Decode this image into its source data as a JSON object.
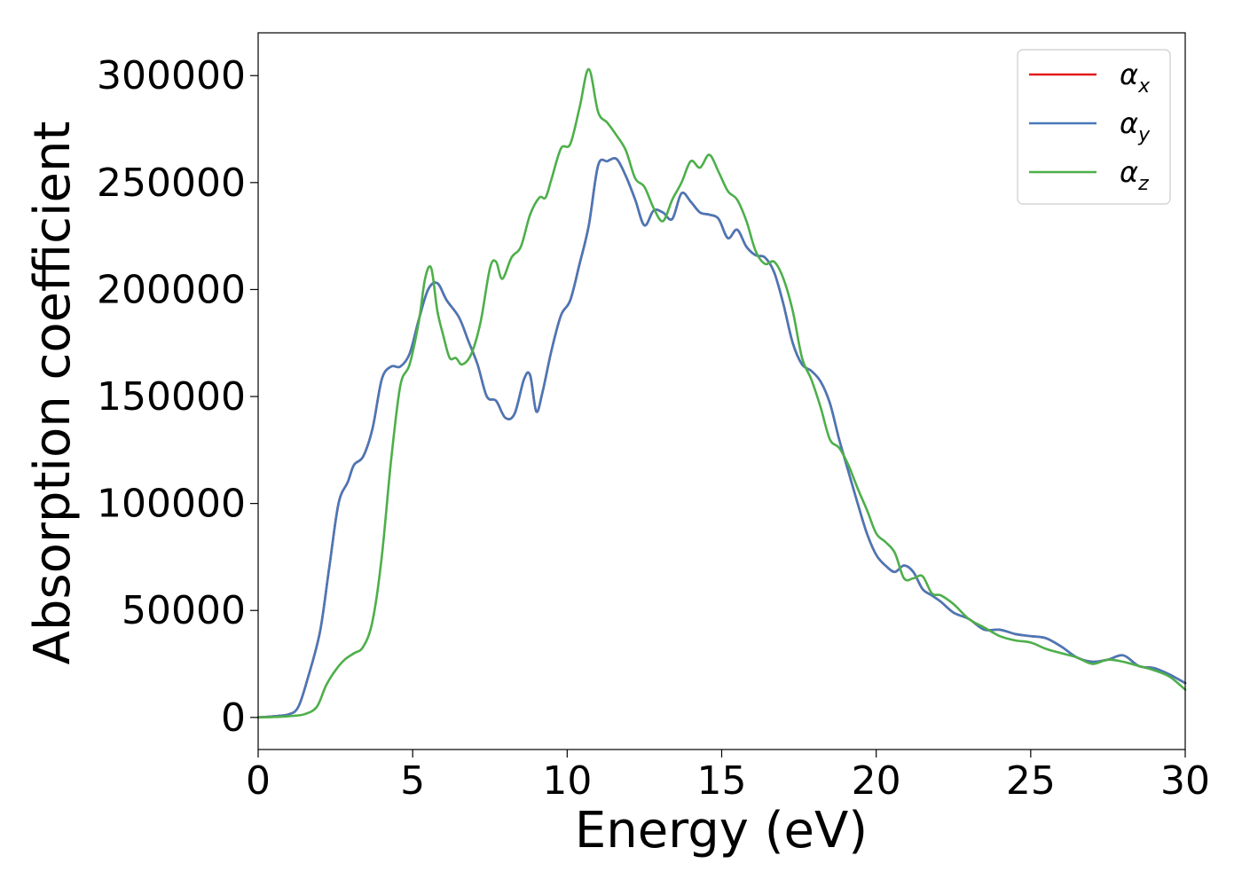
{
  "chart_data": {
    "type": "line",
    "title": "",
    "xlabel": "Energy (eV)",
    "ylabel": "Absorption coefficient",
    "xlim": [
      0,
      30
    ],
    "ylim": [
      -15000,
      320000
    ],
    "xticks": [
      0,
      5,
      10,
      15,
      20,
      25,
      30
    ],
    "yticks": [
      0,
      50000,
      100000,
      150000,
      200000,
      250000,
      300000
    ],
    "xtick_labels": [
      "0",
      "5",
      "10",
      "15",
      "20",
      "25",
      "30"
    ],
    "ytick_labels": [
      "0",
      "50000",
      "100000",
      "150000",
      "200000",
      "250000",
      "300000"
    ],
    "grid": false,
    "legend_position": "top-right",
    "series": [
      {
        "name": "α_x",
        "label_main": "α",
        "label_sub": "x",
        "color": "#e41a1c",
        "x": [
          0,
          0.5,
          1,
          1.3,
          1.6,
          2,
          2.3,
          2.6,
          2.9,
          3.1,
          3.4,
          3.7,
          4,
          4.3,
          4.6,
          4.9,
          5.2,
          5.5,
          5.8,
          6.1,
          6.5,
          6.8,
          7.1,
          7.4,
          7.7,
          8,
          8.3,
          8.6,
          8.8,
          9,
          9.2,
          9.5,
          9.8,
          10.1,
          10.4,
          10.7,
          11,
          11.3,
          11.6,
          11.9,
          12.2,
          12.5,
          12.8,
          13.1,
          13.4,
          13.7,
          14,
          14.3,
          14.6,
          14.9,
          15.2,
          15.5,
          15.8,
          16.1,
          16.4,
          16.7,
          17,
          17.3,
          17.6,
          17.9,
          18.2,
          18.5,
          18.8,
          19.1,
          19.4,
          19.7,
          20,
          20.3,
          20.6,
          20.9,
          21.2,
          21.5,
          21.8,
          22.1,
          22.5,
          23,
          23.5,
          24,
          24.5,
          25,
          25.5,
          26,
          26.5,
          27,
          27.5,
          28,
          28.5,
          29,
          29.5,
          30
        ],
        "y": [
          0,
          500,
          1500,
          5000,
          18000,
          40000,
          70000,
          100000,
          110000,
          118000,
          122000,
          135000,
          158000,
          164000,
          164000,
          170000,
          186000,
          200000,
          203000,
          195000,
          187000,
          176000,
          165000,
          150000,
          148000,
          140000,
          142000,
          158000,
          160000,
          143000,
          152000,
          172000,
          188000,
          195000,
          212000,
          230000,
          258000,
          260000,
          261000,
          253000,
          242000,
          230000,
          237000,
          236000,
          233000,
          245000,
          241000,
          236000,
          235000,
          233000,
          224000,
          228000,
          220000,
          216000,
          215000,
          208000,
          193000,
          175000,
          165000,
          162000,
          157000,
          147000,
          130000,
          115000,
          100000,
          86000,
          76000,
          71000,
          68000,
          71000,
          68000,
          60000,
          57000,
          54000,
          49000,
          46000,
          41000,
          41000,
          39000,
          38000,
          37000,
          33000,
          28000,
          26000,
          27000,
          29000,
          24000,
          23000,
          20000,
          16000
        ]
      },
      {
        "name": "α_y",
        "label_main": "α",
        "label_sub": "y",
        "color": "#4878b8",
        "x": [
          0,
          0.5,
          1,
          1.3,
          1.6,
          2,
          2.3,
          2.6,
          2.9,
          3.1,
          3.4,
          3.7,
          4,
          4.3,
          4.6,
          4.9,
          5.2,
          5.5,
          5.8,
          6.1,
          6.5,
          6.8,
          7.1,
          7.4,
          7.7,
          8,
          8.3,
          8.6,
          8.8,
          9,
          9.2,
          9.5,
          9.8,
          10.1,
          10.4,
          10.7,
          11,
          11.3,
          11.6,
          11.9,
          12.2,
          12.5,
          12.8,
          13.1,
          13.4,
          13.7,
          14,
          14.3,
          14.6,
          14.9,
          15.2,
          15.5,
          15.8,
          16.1,
          16.4,
          16.7,
          17,
          17.3,
          17.6,
          17.9,
          18.2,
          18.5,
          18.8,
          19.1,
          19.4,
          19.7,
          20,
          20.3,
          20.6,
          20.9,
          21.2,
          21.5,
          21.8,
          22.1,
          22.5,
          23,
          23.5,
          24,
          24.5,
          25,
          25.5,
          26,
          26.5,
          27,
          27.5,
          28,
          28.5,
          29,
          29.5,
          30
        ],
        "y": [
          0,
          500,
          1500,
          5000,
          18000,
          40000,
          70000,
          100000,
          110000,
          118000,
          122000,
          135000,
          158000,
          164000,
          164000,
          170000,
          186000,
          200000,
          203000,
          195000,
          187000,
          176000,
          165000,
          150000,
          148000,
          140000,
          142000,
          158000,
          160000,
          143000,
          152000,
          172000,
          188000,
          195000,
          212000,
          230000,
          258000,
          260000,
          261000,
          253000,
          242000,
          230000,
          237000,
          236000,
          233000,
          245000,
          241000,
          236000,
          235000,
          233000,
          224000,
          228000,
          220000,
          216000,
          215000,
          208000,
          193000,
          175000,
          165000,
          162000,
          157000,
          147000,
          130000,
          115000,
          100000,
          86000,
          76000,
          71000,
          68000,
          71000,
          68000,
          60000,
          57000,
          54000,
          49000,
          46000,
          41000,
          41000,
          39000,
          38000,
          37000,
          33000,
          28000,
          26000,
          27000,
          29000,
          24000,
          23000,
          20000,
          16000
        ]
      },
      {
        "name": "α_z",
        "label_main": "α",
        "label_sub": "z",
        "color": "#4daf4a",
        "x": [
          0,
          0.5,
          1,
          1.5,
          1.9,
          2.2,
          2.5,
          2.8,
          3.1,
          3.4,
          3.7,
          4,
          4.3,
          4.6,
          4.9,
          5.2,
          5.4,
          5.6,
          5.8,
          6,
          6.2,
          6.4,
          6.6,
          6.9,
          7.2,
          7.5,
          7.7,
          7.9,
          8.2,
          8.5,
          8.8,
          9.1,
          9.3,
          9.5,
          9.8,
          10.1,
          10.4,
          10.7,
          11,
          11.3,
          11.6,
          11.9,
          12.2,
          12.5,
          12.8,
          13.1,
          13.4,
          13.7,
          14,
          14.3,
          14.6,
          14.9,
          15.2,
          15.5,
          15.8,
          16.1,
          16.4,
          16.7,
          17,
          17.3,
          17.6,
          17.9,
          18.2,
          18.5,
          18.8,
          19.1,
          19.4,
          19.7,
          20,
          20.3,
          20.6,
          20.9,
          21.2,
          21.5,
          21.8,
          22.1,
          22.5,
          23,
          23.5,
          24,
          24.5,
          25,
          25.5,
          26,
          26.5,
          27,
          27.5,
          28,
          28.5,
          29,
          29.5,
          30
        ],
        "y": [
          0,
          200,
          600,
          1500,
          5000,
          15000,
          22000,
          27000,
          30000,
          33000,
          45000,
          75000,
          120000,
          155000,
          165000,
          185000,
          205000,
          210000,
          190000,
          178000,
          168000,
          168000,
          165000,
          170000,
          185000,
          210000,
          213000,
          205000,
          215000,
          220000,
          235000,
          243000,
          243000,
          252000,
          266000,
          268000,
          285000,
          303000,
          283000,
          278000,
          272000,
          265000,
          252000,
          248000,
          238000,
          232000,
          242000,
          250000,
          260000,
          257000,
          263000,
          255000,
          246000,
          242000,
          232000,
          218000,
          212000,
          213000,
          205000,
          190000,
          168000,
          158000,
          145000,
          130000,
          126000,
          118000,
          107000,
          97000,
          86000,
          82000,
          77000,
          65000,
          65000,
          66000,
          58000,
          57000,
          53000,
          46000,
          42000,
          38000,
          36000,
          35000,
          32000,
          30000,
          28000,
          25000,
          27000,
          26000,
          24000,
          22000,
          19000,
          13000
        ]
      }
    ]
  }
}
